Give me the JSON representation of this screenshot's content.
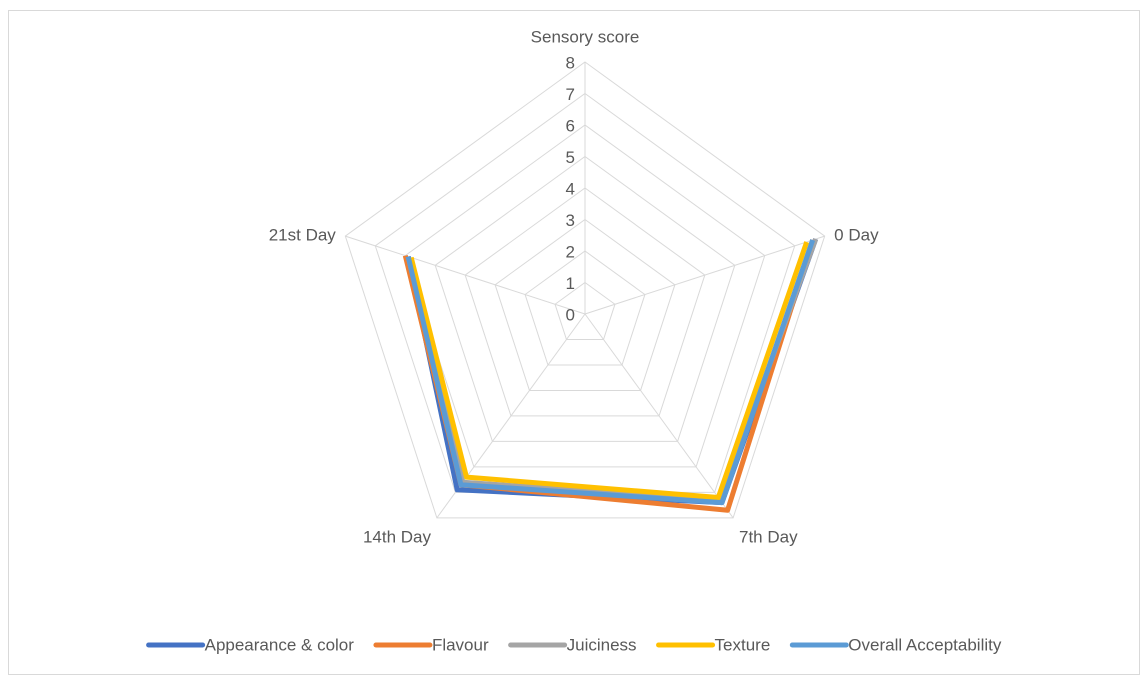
{
  "chart_data": {
    "type": "radar",
    "categories": [
      "Sensory score",
      "0 Day",
      "7th Day",
      "14th Day",
      "21st Day"
    ],
    "series": [
      {
        "name": "Appearance & color",
        "color": "#4472c4",
        "values": [
          null,
          7.7,
          7.4,
          6.9,
          5.9
        ]
      },
      {
        "name": "Flavour",
        "color": "#ed7d31",
        "values": [
          null,
          7.6,
          7.7,
          6.7,
          6.0
        ]
      },
      {
        "name": "Juiciness",
        "color": "#a5a5a5",
        "values": [
          null,
          7.7,
          7.3,
          6.6,
          5.9
        ]
      },
      {
        "name": "Texture",
        "color": "#ffc000",
        "values": [
          null,
          7.4,
          7.2,
          6.4,
          5.8
        ]
      },
      {
        "name": "Overall Acceptability",
        "color": "#5b9bd5",
        "values": [
          null,
          7.6,
          7.4,
          6.7,
          5.9
        ]
      }
    ],
    "rlim": [
      0,
      8
    ],
    "rticks": [
      0,
      1,
      2,
      3,
      4,
      5,
      6,
      7,
      8
    ],
    "grid": true,
    "legend": "bottom"
  }
}
